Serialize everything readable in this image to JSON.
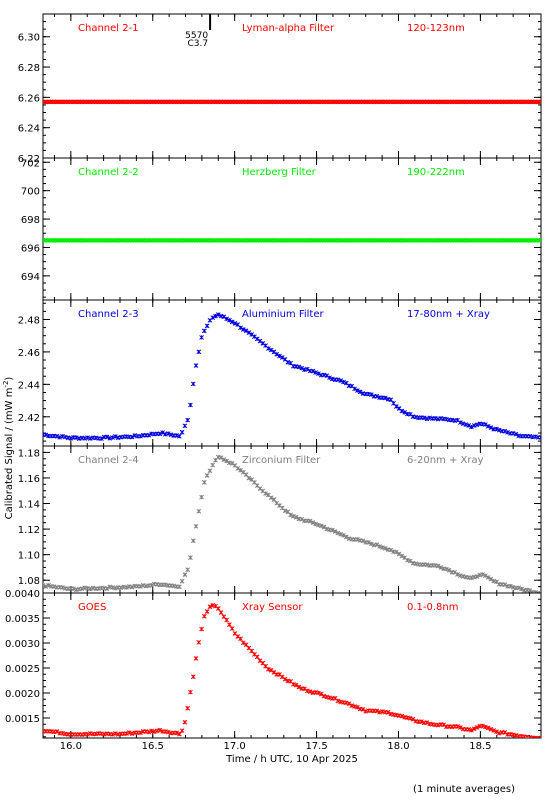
{
  "chart_data": [
    {
      "type": "scatter",
      "channel": "Channel 2-1",
      "filter": "Lyman-alpha Filter",
      "band": "120-123nm",
      "color": "#ff0000",
      "ylim": [
        6.22,
        6.315
      ],
      "yticks": [
        "6.22",
        "6.24",
        "6.26",
        "6.28",
        "6.30"
      ],
      "ytick_values": [
        6.22,
        6.24,
        6.26,
        6.28,
        6.3
      ],
      "annotation": {
        "label1": "5570",
        "label2": "C3.7",
        "x": 16.85
      },
      "series_points": [
        [
          15.83,
          6.257
        ],
        [
          18.87,
          6.257
        ]
      ],
      "shape": "flat"
    },
    {
      "type": "scatter",
      "channel": "Channel 2-2",
      "filter": "Herzberg Filter",
      "band": "190-222nm",
      "color": "#00ee00",
      "ylim": [
        692.3,
        702.3
      ],
      "yticks": [
        "694",
        "696",
        "698",
        "700",
        "702"
      ],
      "ytick_values": [
        694,
        696,
        698,
        700,
        702
      ],
      "series_points": [
        [
          15.83,
          696.5
        ],
        [
          18.87,
          696.5
        ]
      ],
      "shape": "flat"
    },
    {
      "type": "scatter",
      "channel": "Channel 2-3",
      "filter": "Aluminium Filter",
      "band": "17-80nm + Xray",
      "color": "#0000dd",
      "ylim": [
        2.402,
        2.492
      ],
      "yticks": [
        "2.42",
        "2.44",
        "2.46",
        "2.48"
      ],
      "ytick_values": [
        2.42,
        2.44,
        2.46,
        2.48
      ],
      "series_points": [
        [
          15.83,
          2.409
        ],
        [
          16.0,
          2.407
        ],
        [
          16.2,
          2.407
        ],
        [
          16.4,
          2.408
        ],
        [
          16.55,
          2.41
        ],
        [
          16.67,
          2.408
        ],
        [
          16.72,
          2.42
        ],
        [
          16.76,
          2.45
        ],
        [
          16.8,
          2.47
        ],
        [
          16.86,
          2.481
        ],
        [
          16.9,
          2.483
        ],
        [
          17.0,
          2.478
        ],
        [
          17.2,
          2.463
        ],
        [
          17.35,
          2.452
        ],
        [
          17.5,
          2.447
        ],
        [
          17.65,
          2.442
        ],
        [
          17.8,
          2.434
        ],
        [
          17.95,
          2.431
        ],
        [
          18.0,
          2.425
        ],
        [
          18.1,
          2.42
        ],
        [
          18.2,
          2.419
        ],
        [
          18.35,
          2.418
        ],
        [
          18.45,
          2.414
        ],
        [
          18.5,
          2.416
        ],
        [
          18.6,
          2.412
        ],
        [
          18.75,
          2.408
        ],
        [
          18.87,
          2.407
        ]
      ],
      "shape": "flare"
    },
    {
      "type": "scatter",
      "channel": "Channel 2-4",
      "filter": "Zirconium Filter",
      "band": "6-20nm + Xray",
      "color": "#808080",
      "ylim": [
        1.07,
        1.185
      ],
      "yticks": [
        "1.08",
        "1.10",
        "1.12",
        "1.14",
        "1.16",
        "1.18"
      ],
      "ytick_values": [
        1.08,
        1.1,
        1.12,
        1.14,
        1.16,
        1.18
      ],
      "series_points": [
        [
          15.83,
          1.076
        ],
        [
          16.0,
          1.073
        ],
        [
          16.2,
          1.074
        ],
        [
          16.4,
          1.075
        ],
        [
          16.55,
          1.077
        ],
        [
          16.66,
          1.075
        ],
        [
          16.72,
          1.09
        ],
        [
          16.76,
          1.12
        ],
        [
          16.82,
          1.16
        ],
        [
          16.9,
          1.177
        ],
        [
          17.0,
          1.17
        ],
        [
          17.2,
          1.147
        ],
        [
          17.35,
          1.13
        ],
        [
          17.5,
          1.124
        ],
        [
          17.7,
          1.113
        ],
        [
          17.85,
          1.108
        ],
        [
          17.95,
          1.104
        ],
        [
          18.1,
          1.093
        ],
        [
          18.25,
          1.091
        ],
        [
          18.4,
          1.083
        ],
        [
          18.45,
          1.081
        ],
        [
          18.5,
          1.085
        ],
        [
          18.6,
          1.078
        ],
        [
          18.75,
          1.073
        ],
        [
          18.87,
          1.07
        ]
      ],
      "shape": "flare"
    },
    {
      "type": "scatter",
      "channel": "GOES",
      "filter": "Xray Sensor",
      "band": "0.1-0.8nm",
      "color": "#ff0000",
      "ylim": [
        0.0011,
        0.004
      ],
      "yticks": [
        "0.0015",
        "0.0020",
        "0.0025",
        "0.0030",
        "0.0035",
        "0.0040"
      ],
      "ytick_values": [
        0.0015,
        0.002,
        0.0025,
        0.003,
        0.0035,
        0.004
      ],
      "series_points": [
        [
          15.83,
          0.00125
        ],
        [
          16.0,
          0.00118
        ],
        [
          16.3,
          0.00118
        ],
        [
          16.55,
          0.00125
        ],
        [
          16.67,
          0.00118
        ],
        [
          16.7,
          0.00145
        ],
        [
          16.74,
          0.0022
        ],
        [
          16.78,
          0.003
        ],
        [
          16.82,
          0.0036
        ],
        [
          16.86,
          0.00375
        ],
        [
          16.9,
          0.0037
        ],
        [
          17.0,
          0.0032
        ],
        [
          17.2,
          0.0025
        ],
        [
          17.4,
          0.0021
        ],
        [
          17.55,
          0.00195
        ],
        [
          17.7,
          0.00178
        ],
        [
          17.8,
          0.00165
        ],
        [
          17.95,
          0.0016
        ],
        [
          18.1,
          0.00145
        ],
        [
          18.2,
          0.00138
        ],
        [
          18.35,
          0.00132
        ],
        [
          18.45,
          0.00125
        ],
        [
          18.5,
          0.00135
        ],
        [
          18.6,
          0.00122
        ],
        [
          18.75,
          0.00114
        ],
        [
          18.87,
          0.0011
        ]
      ],
      "shape": "flare"
    }
  ],
  "axes": {
    "xlim": [
      15.83,
      18.87
    ],
    "xticks": [
      "16.0",
      "16.5",
      "17.0",
      "17.5",
      "18.0",
      "18.5"
    ],
    "xtick_values": [
      16.0,
      16.5,
      17.0,
      17.5,
      18.0,
      18.5
    ],
    "xlabel": "Time / h UTC, 10 Apr 2025",
    "ylabel": "Calibrated Signal / (mW m",
    "ylabel_sup": "-2",
    "ylabel_end": ")",
    "footnote": "(1 minute averages)"
  }
}
